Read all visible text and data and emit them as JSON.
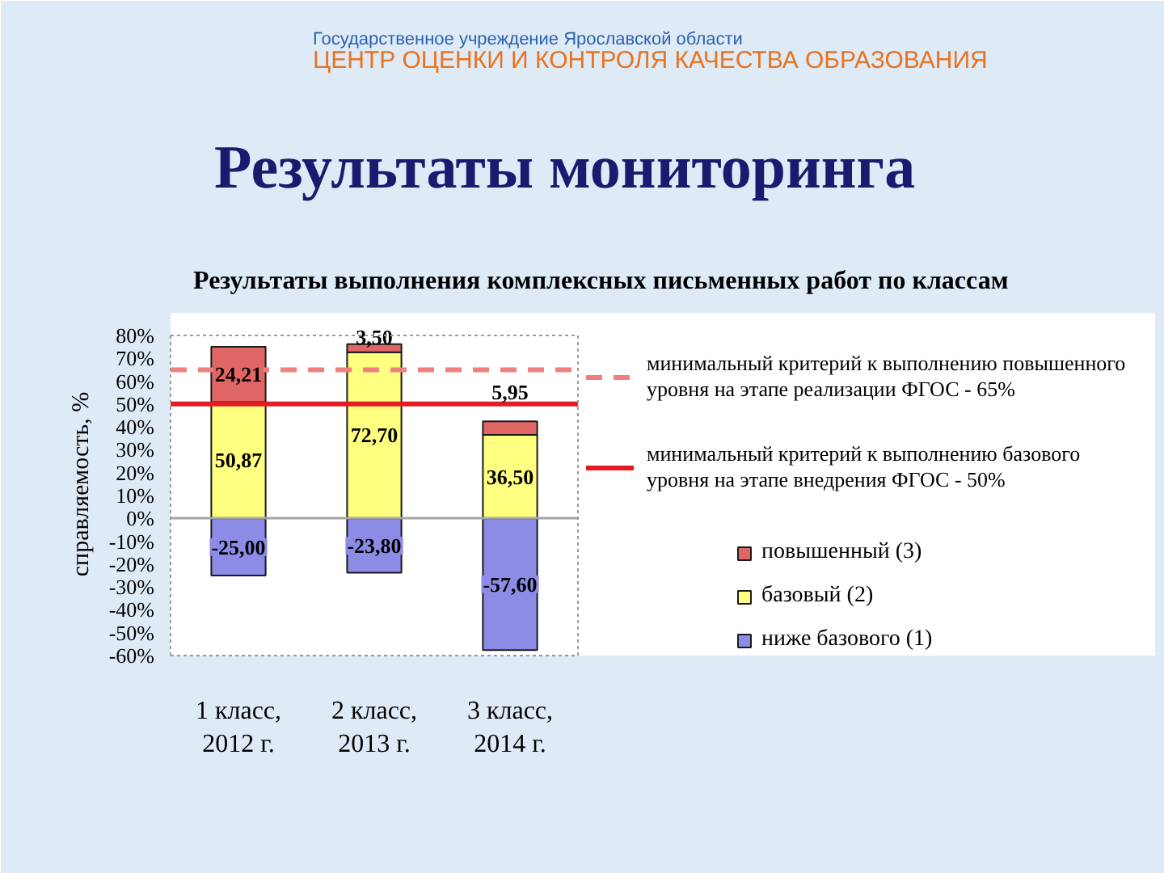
{
  "chart_data": {
    "type": "bar",
    "title": "Результаты мониторинга",
    "subtitle": "Результаты выполнения комплексных письменных работ по классам",
    "ylabel": "справляемость, %",
    "annotations": [
      "Государственное учреждение Ярославской области",
      "ЦЕНТР ОЦЕНКИ И КОНТРОЛЯ КАЧЕСТВА ОБРАЗОВАНИЯ"
    ],
    "categories": [
      "1 класс, 2012 г.",
      "2 класс, 2013 г.",
      "3 класс, 2014 г."
    ],
    "stacked": true,
    "series": [
      {
        "name": "ниже базового (1)",
        "color": "#8c8ce6",
        "values": [
          -25.0,
          -23.8,
          -57.6
        ],
        "value_labels": [
          "-25,00",
          "-23,80",
          "-57,60"
        ]
      },
      {
        "name": "базовый (2)",
        "color": "#ffff80",
        "values": [
          50.87,
          72.7,
          36.5
        ],
        "value_labels": [
          "50,87",
          "72,70",
          "36,50"
        ]
      },
      {
        "name": "повышенный (3)",
        "color": "#e06666",
        "values": [
          24.21,
          3.5,
          5.95
        ],
        "value_labels": [
          "24,21",
          "3,50",
          "5,95"
        ]
      }
    ],
    "ylim": [
      -60,
      80
    ],
    "yticks": [
      {
        "value": 80,
        "label": "80%"
      },
      {
        "value": 70,
        "label": "70%"
      },
      {
        "value": 60,
        "label": "60%"
      },
      {
        "value": 50,
        "label": "50%"
      },
      {
        "value": 40,
        "label": "40%"
      },
      {
        "value": 30,
        "label": "30%"
      },
      {
        "value": 20,
        "label": "20%"
      },
      {
        "value": 10,
        "label": "10%"
      },
      {
        "value": 0,
        "label": "0%"
      },
      {
        "value": -10,
        "label": "-10%"
      },
      {
        "value": -20,
        "label": "-20%"
      },
      {
        "value": -30,
        "label": "-30%"
      },
      {
        "value": -40,
        "label": "-40%"
      },
      {
        "value": -50,
        "label": "-50%"
      },
      {
        "value": -60,
        "label": "-60%"
      }
    ],
    "ref_lines": [
      {
        "axis": "y",
        "value": 65,
        "label": "минимальный критерий к выполнению повышенного уровня на этапе реализации ФГОС - 65%",
        "color": "#f08080",
        "line_style": "dashed"
      },
      {
        "axis": "y",
        "value": 50,
        "label": "минимальный критерий к выполнению базового уровня на этапе внедрения ФГОС - 50%",
        "color": "#e31b23",
        "line_style": "solid"
      }
    ],
    "legend": "right"
  }
}
